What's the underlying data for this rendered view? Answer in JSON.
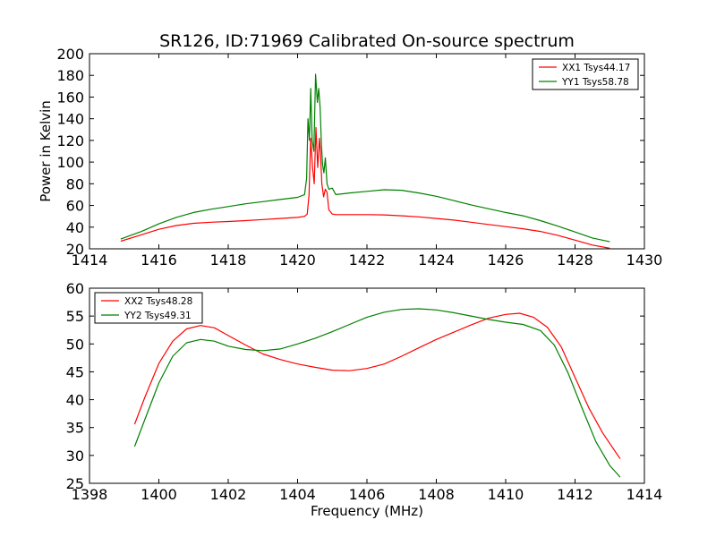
{
  "figure": {
    "title": "SR126, ID:71969 Calibrated On-source spectrum",
    "xlabel": "Frequency (MHz)"
  },
  "colors": {
    "red": "#ff0000",
    "green": "#008000"
  },
  "chart_data": [
    {
      "type": "line",
      "title": "SR126, ID:71969 Calibrated On-source spectrum",
      "xlabel": "",
      "ylabel": "Power in Kelvin",
      "xlim": [
        1414,
        1430
      ],
      "ylim": [
        20,
        200
      ],
      "xticks": [
        1414,
        1416,
        1418,
        1420,
        1422,
        1424,
        1426,
        1428,
        1430
      ],
      "yticks": [
        20,
        40,
        60,
        80,
        100,
        120,
        140,
        160,
        180,
        200
      ],
      "legend_position": "top-right",
      "series": [
        {
          "name": "XX1 Tsys44.17",
          "color": "red",
          "x": [
            1414.9,
            1415.5,
            1416.0,
            1416.5,
            1417.0,
            1417.5,
            1418.0,
            1418.5,
            1419.0,
            1419.5,
            1420.0,
            1420.2,
            1420.28,
            1420.33,
            1420.38,
            1420.43,
            1420.48,
            1420.53,
            1420.58,
            1420.63,
            1420.66,
            1420.7,
            1420.75,
            1420.8,
            1420.85,
            1420.9,
            1421.0,
            1421.1,
            1421.5,
            1422.0,
            1422.5,
            1423.0,
            1423.5,
            1424.0,
            1424.5,
            1425.0,
            1425.5,
            1426.0,
            1426.5,
            1427.0,
            1427.5,
            1428.0,
            1428.5,
            1429.0
          ],
          "values": [
            27,
            33,
            38,
            41.5,
            43.5,
            44.5,
            45.2,
            46,
            47,
            48,
            49,
            50,
            52,
            70,
            122,
            95,
            80,
            132,
            95,
            122,
            108,
            80,
            68,
            75,
            72,
            56,
            52,
            51.5,
            51.5,
            51.5,
            51.3,
            50.5,
            49.5,
            48,
            46.5,
            44.5,
            42.5,
            40.5,
            38.5,
            36,
            32.5,
            28,
            23.5,
            20.5
          ]
        },
        {
          "name": "YY1 Tsys58.78",
          "color": "green",
          "x": [
            1414.9,
            1415.5,
            1416.0,
            1416.5,
            1417.0,
            1417.5,
            1418.0,
            1418.5,
            1419.0,
            1419.5,
            1420.0,
            1420.2,
            1420.26,
            1420.3,
            1420.34,
            1420.38,
            1420.42,
            1420.47,
            1420.52,
            1420.57,
            1420.61,
            1420.65,
            1420.69,
            1420.72,
            1420.76,
            1420.8,
            1420.85,
            1420.9,
            1421.0,
            1421.1,
            1421.5,
            1422.0,
            1422.5,
            1423.0,
            1423.5,
            1424.0,
            1424.5,
            1425.0,
            1425.5,
            1426.0,
            1426.5,
            1427.0,
            1427.5,
            1428.0,
            1428.5,
            1429.0
          ],
          "values": [
            29,
            36,
            43,
            49,
            53.5,
            56.5,
            59,
            61.5,
            63.5,
            65.5,
            67.5,
            70,
            85,
            140,
            120,
            168,
            120,
            110,
            181,
            155,
            168,
            150,
            115,
            98,
            90,
            104,
            80,
            75,
            76,
            70,
            71.5,
            73,
            74.5,
            74,
            71.5,
            68.5,
            64.5,
            60.5,
            57,
            53.5,
            50.5,
            46,
            41,
            35.5,
            30,
            26.5
          ]
        }
      ]
    },
    {
      "type": "line",
      "title": "",
      "xlabel": "Frequency (MHz)",
      "ylabel": "",
      "xlim": [
        1398,
        1414
      ],
      "ylim": [
        25,
        60
      ],
      "xticks": [
        1398,
        1400,
        1402,
        1404,
        1406,
        1408,
        1410,
        1412,
        1414
      ],
      "yticks": [
        25,
        30,
        35,
        40,
        45,
        50,
        55,
        60
      ],
      "legend_position": "top-left",
      "series": [
        {
          "name": "XX2 Tsys48.28",
          "color": "red",
          "x": [
            1399.3,
            1399.6,
            1400.0,
            1400.4,
            1400.8,
            1401.2,
            1401.6,
            1402.0,
            1402.5,
            1403.0,
            1403.5,
            1404.0,
            1404.5,
            1405.0,
            1405.5,
            1406.0,
            1406.5,
            1407.0,
            1407.5,
            1408.0,
            1408.5,
            1409.0,
            1409.5,
            1410.0,
            1410.4,
            1410.8,
            1411.2,
            1411.6,
            1412.0,
            1412.4,
            1412.8,
            1413.3
          ],
          "values": [
            35.6,
            40.5,
            46.5,
            50.5,
            52.7,
            53.3,
            52.9,
            51.5,
            49.8,
            48.2,
            47.2,
            46.4,
            45.8,
            45.3,
            45.2,
            45.6,
            46.4,
            47.8,
            49.3,
            50.8,
            52.1,
            53.4,
            54.6,
            55.3,
            55.5,
            54.8,
            53.0,
            49.5,
            44.0,
            38.5,
            34.0,
            29.4
          ]
        },
        {
          "name": "YY2 Tsys49.31",
          "color": "green",
          "x": [
            1399.3,
            1399.6,
            1400.0,
            1400.4,
            1400.8,
            1401.2,
            1401.6,
            1402.0,
            1402.5,
            1403.0,
            1403.5,
            1404.0,
            1404.5,
            1405.0,
            1405.5,
            1406.0,
            1406.5,
            1407.0,
            1407.5,
            1408.0,
            1408.5,
            1409.0,
            1409.5,
            1410.0,
            1410.5,
            1411.0,
            1411.4,
            1411.8,
            1412.2,
            1412.6,
            1413.0,
            1413.3
          ],
          "values": [
            31.6,
            36.5,
            43.0,
            47.8,
            50.2,
            50.8,
            50.5,
            49.6,
            49.0,
            48.8,
            49.1,
            50.0,
            51.0,
            52.2,
            53.5,
            54.8,
            55.7,
            56.2,
            56.3,
            56.1,
            55.6,
            55.0,
            54.4,
            53.9,
            53.5,
            52.4,
            49.8,
            44.8,
            38.5,
            32.5,
            28.2,
            26.1
          ]
        }
      ]
    }
  ]
}
